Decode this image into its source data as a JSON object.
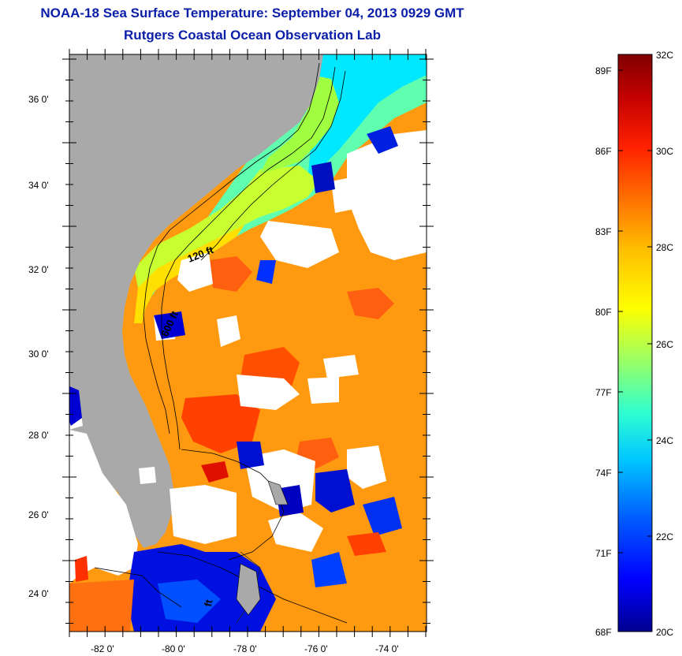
{
  "header": {
    "title": "NOAA-18 Sea Surface Temperature:  September 04, 2013 0929 GMT",
    "subtitle": "Rutgers Coastal Ocean Observation Lab"
  },
  "map": {
    "latitude_labels": [
      "36 0'",
      "34 0'",
      "32 0'",
      "30 0'",
      "28 0'",
      "26 0'",
      "24 0'"
    ],
    "longitude_labels": [
      "-82 0'",
      "-80 0'",
      "-78 0'",
      "-76 0'",
      "-74 0'"
    ],
    "contour_labels": [
      "120 ft",
      "600 ft",
      "ft"
    ],
    "colors": {
      "land": "#a9a9a9",
      "cloud": "#ffffff",
      "frame": "#000000"
    }
  },
  "colorbar": {
    "fahrenheit_labels": [
      "89F",
      "86F",
      "83F",
      "80F",
      "77F",
      "74F",
      "71F",
      "68F"
    ],
    "celsius_labels": [
      "32C",
      "30C",
      "28C",
      "26C",
      "24C",
      "22C",
      "20C"
    ],
    "range_c": [
      20,
      32
    ],
    "stops": [
      "#00008f",
      "#0000ff",
      "#0060ff",
      "#00c8ff",
      "#30ffd0",
      "#90ff70",
      "#ffff00",
      "#ffc000",
      "#ff7000",
      "#ff2000",
      "#c00000",
      "#800000"
    ]
  }
}
